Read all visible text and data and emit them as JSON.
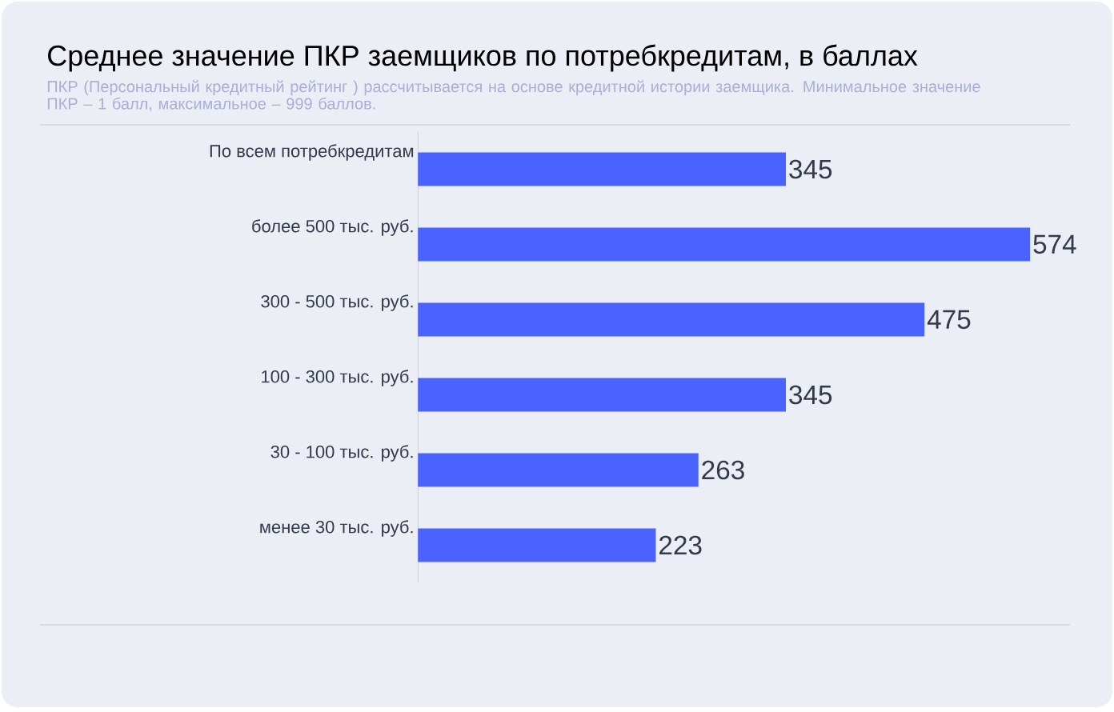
{
  "chart_data": {
    "type": "bar",
    "orientation": "horizontal",
    "title": "Среднее значение ПКР заемщиков по потребкредитам, в баллах",
    "subtitle": "ПКР (Персональный кредитный рейтинг ) рассчитывается на основе кредитной истории заемщика. Минимальное значение  ПКР – 1 балл, максимальное  – 999 баллов.",
    "categories": [
      "По всем потребкредитам",
      "более 500 тыс. руб.",
      "300 - 500 тыс. руб.",
      "100 - 300 тыс. руб.",
      "30 - 100 тыс. руб.",
      "менее 30 тыс. руб."
    ],
    "values": [
      345,
      574,
      475,
      345,
      263,
      223
    ],
    "color": "#4a63ff",
    "data_labels": true
  }
}
